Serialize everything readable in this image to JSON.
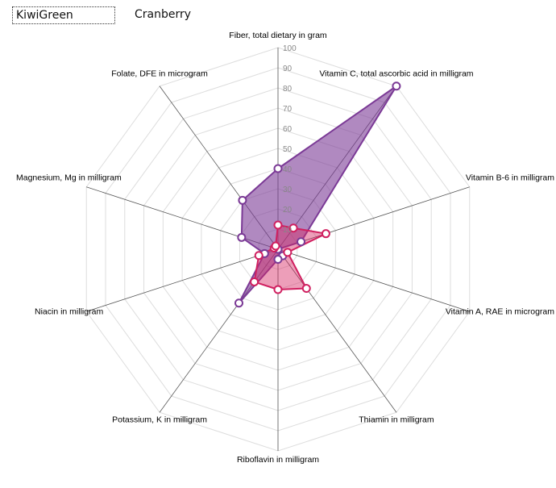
{
  "tabs": [
    {
      "label": "KiwiGreen",
      "active": true
    },
    {
      "label": "Cranberry",
      "active": false
    }
  ],
  "chart_data": {
    "type": "radar",
    "axes": [
      "Fiber, total dietary in gram",
      "Vitamin C, total ascorbic acid in milligram",
      "Vitamin B-6 in milligram",
      "Vitamin A, RAE in microgram",
      "Thiamin in milligram",
      "Riboflavin in milligram",
      "Potassium, K in milligram",
      "Niacin in milligram",
      "Magnesium, Mg in milligram",
      "Folate, DFE in microgram"
    ],
    "ticks": [
      10,
      20,
      30,
      40,
      50,
      60,
      70,
      80,
      90,
      100
    ],
    "range": [
      0,
      100
    ],
    "series": [
      {
        "name": "KiwiGreen",
        "color": "#7b3a96",
        "fill": "rgba(123,58,150,0.6)",
        "values": [
          40,
          100,
          12,
          0,
          4,
          5,
          33,
          7,
          19,
          30
        ]
      },
      {
        "name": "Cranberry",
        "color": "#d02060",
        "fill": "rgba(215,40,100,0.45)",
        "values": [
          12,
          13,
          25,
          5,
          24,
          20,
          20,
          10,
          2,
          2
        ]
      }
    ]
  }
}
